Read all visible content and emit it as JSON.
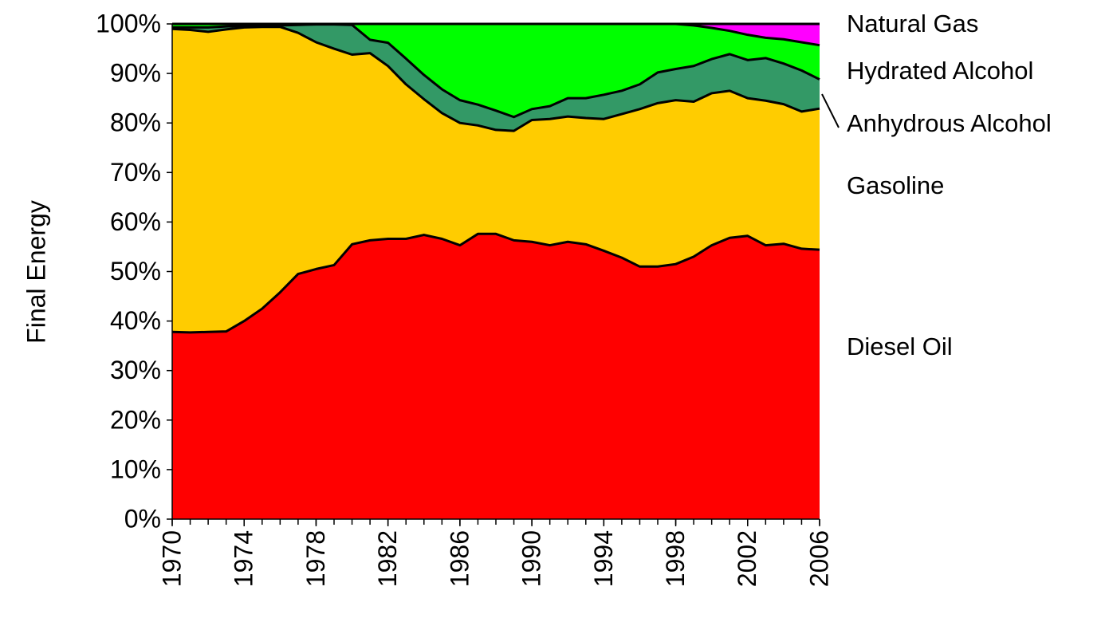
{
  "chart_data": {
    "type": "stacked-area",
    "y_label": "Final Energy",
    "x": [
      1970,
      1971,
      1972,
      1973,
      1974,
      1975,
      1976,
      1977,
      1978,
      1979,
      1980,
      1981,
      1982,
      1983,
      1984,
      1985,
      1986,
      1987,
      1988,
      1989,
      1990,
      1991,
      1992,
      1993,
      1994,
      1995,
      1996,
      1997,
      1998,
      1999,
      2000,
      2001,
      2002,
      2003,
      2004,
      2005,
      2006
    ],
    "xlim": [
      1970,
      2006
    ],
    "xticks": [
      1970,
      1974,
      1978,
      1982,
      1986,
      1990,
      1994,
      1998,
      2002,
      2006
    ],
    "ylim": [
      0,
      100
    ],
    "yticks": [
      {
        "value": 0,
        "label": "0%"
      },
      {
        "value": 10,
        "label": "10%"
      },
      {
        "value": 20,
        "label": "20%"
      },
      {
        "value": 30,
        "label": "30%"
      },
      {
        "value": 40,
        "label": "40%"
      },
      {
        "value": 50,
        "label": "50%"
      },
      {
        "value": 60,
        "label": "60%"
      },
      {
        "value": 70,
        "label": "70%"
      },
      {
        "value": 80,
        "label": "80%"
      },
      {
        "value": 90,
        "label": "90%"
      },
      {
        "value": 100,
        "label": "100%"
      }
    ],
    "series": [
      {
        "name": "Diesel Oil",
        "color": "#ff0000",
        "values": [
          37.8,
          37.7,
          37.8,
          37.9,
          40,
          42.5,
          45.8,
          49.5,
          50.5,
          51.3,
          55.5,
          56.3,
          56.6,
          56.6,
          57.4,
          56.6,
          55.3,
          57.6,
          57.6,
          56.3,
          56,
          55.3,
          56,
          55.5,
          54.2,
          52.8,
          51,
          51,
          51.5,
          53,
          55.3,
          56.8,
          57.2,
          55.3,
          55.6,
          54.6,
          54.4
        ]
      },
      {
        "name": "Gasoline",
        "color": "#ffcc00",
        "values": [
          61.2,
          61.1,
          60.6,
          61.0,
          59.3,
          56.9,
          53.6,
          48.7,
          45.8,
          43.7,
          38.3,
          37.8,
          34.9,
          31.2,
          27.4,
          25.4,
          24.7,
          21.9,
          21.0,
          22.1,
          24.6,
          25.5,
          25.3,
          25.5,
          26.6,
          29.0,
          31.8,
          33.0,
          33.1,
          31.3,
          30.7,
          29.7,
          27.8,
          29.2,
          28.2,
          27.7,
          28.5
        ]
      },
      {
        "name": "Anhydrous Alcohol",
        "color": "#339966",
        "values": [
          0.3,
          0.5,
          0.9,
          0.6,
          0.3,
          0.3,
          0.3,
          1.6,
          3.6,
          4.9,
          6.0,
          2.7,
          4.7,
          5.2,
          4.9,
          4.8,
          4.6,
          4.2,
          3.9,
          2.8,
          2.2,
          2.6,
          3.7,
          4.0,
          4.9,
          4.7,
          5.0,
          6.2,
          6.3,
          7.2,
          6.9,
          7.4,
          7.7,
          8.6,
          8.2,
          8.3,
          5.9
        ]
      },
      {
        "name": "Hydrated Alcohol",
        "color": "#00ff00",
        "values": [
          0.7,
          0.7,
          0.7,
          0.5,
          0.4,
          0.3,
          0.3,
          0.2,
          0.1,
          0.1,
          0.2,
          3.2,
          3.8,
          7.0,
          10.3,
          13.2,
          15.4,
          16.3,
          17.5,
          18.8,
          17.2,
          16.6,
          15.0,
          15.0,
          14.3,
          13.5,
          12.2,
          9.8,
          9.1,
          8.2,
          6.3,
          4.7,
          5.1,
          4.1,
          4.9,
          5.7,
          6.9
        ]
      },
      {
        "name": "Natural Gas",
        "color": "#ff00ff",
        "values": [
          0,
          0,
          0,
          0,
          0,
          0,
          0,
          0,
          0,
          0,
          0,
          0,
          0,
          0,
          0,
          0,
          0,
          0,
          0,
          0,
          0,
          0,
          0,
          0,
          0,
          0,
          0,
          0,
          0,
          0.3,
          0.8,
          1.4,
          2.2,
          2.8,
          3.1,
          3.7,
          4.3
        ]
      }
    ]
  }
}
